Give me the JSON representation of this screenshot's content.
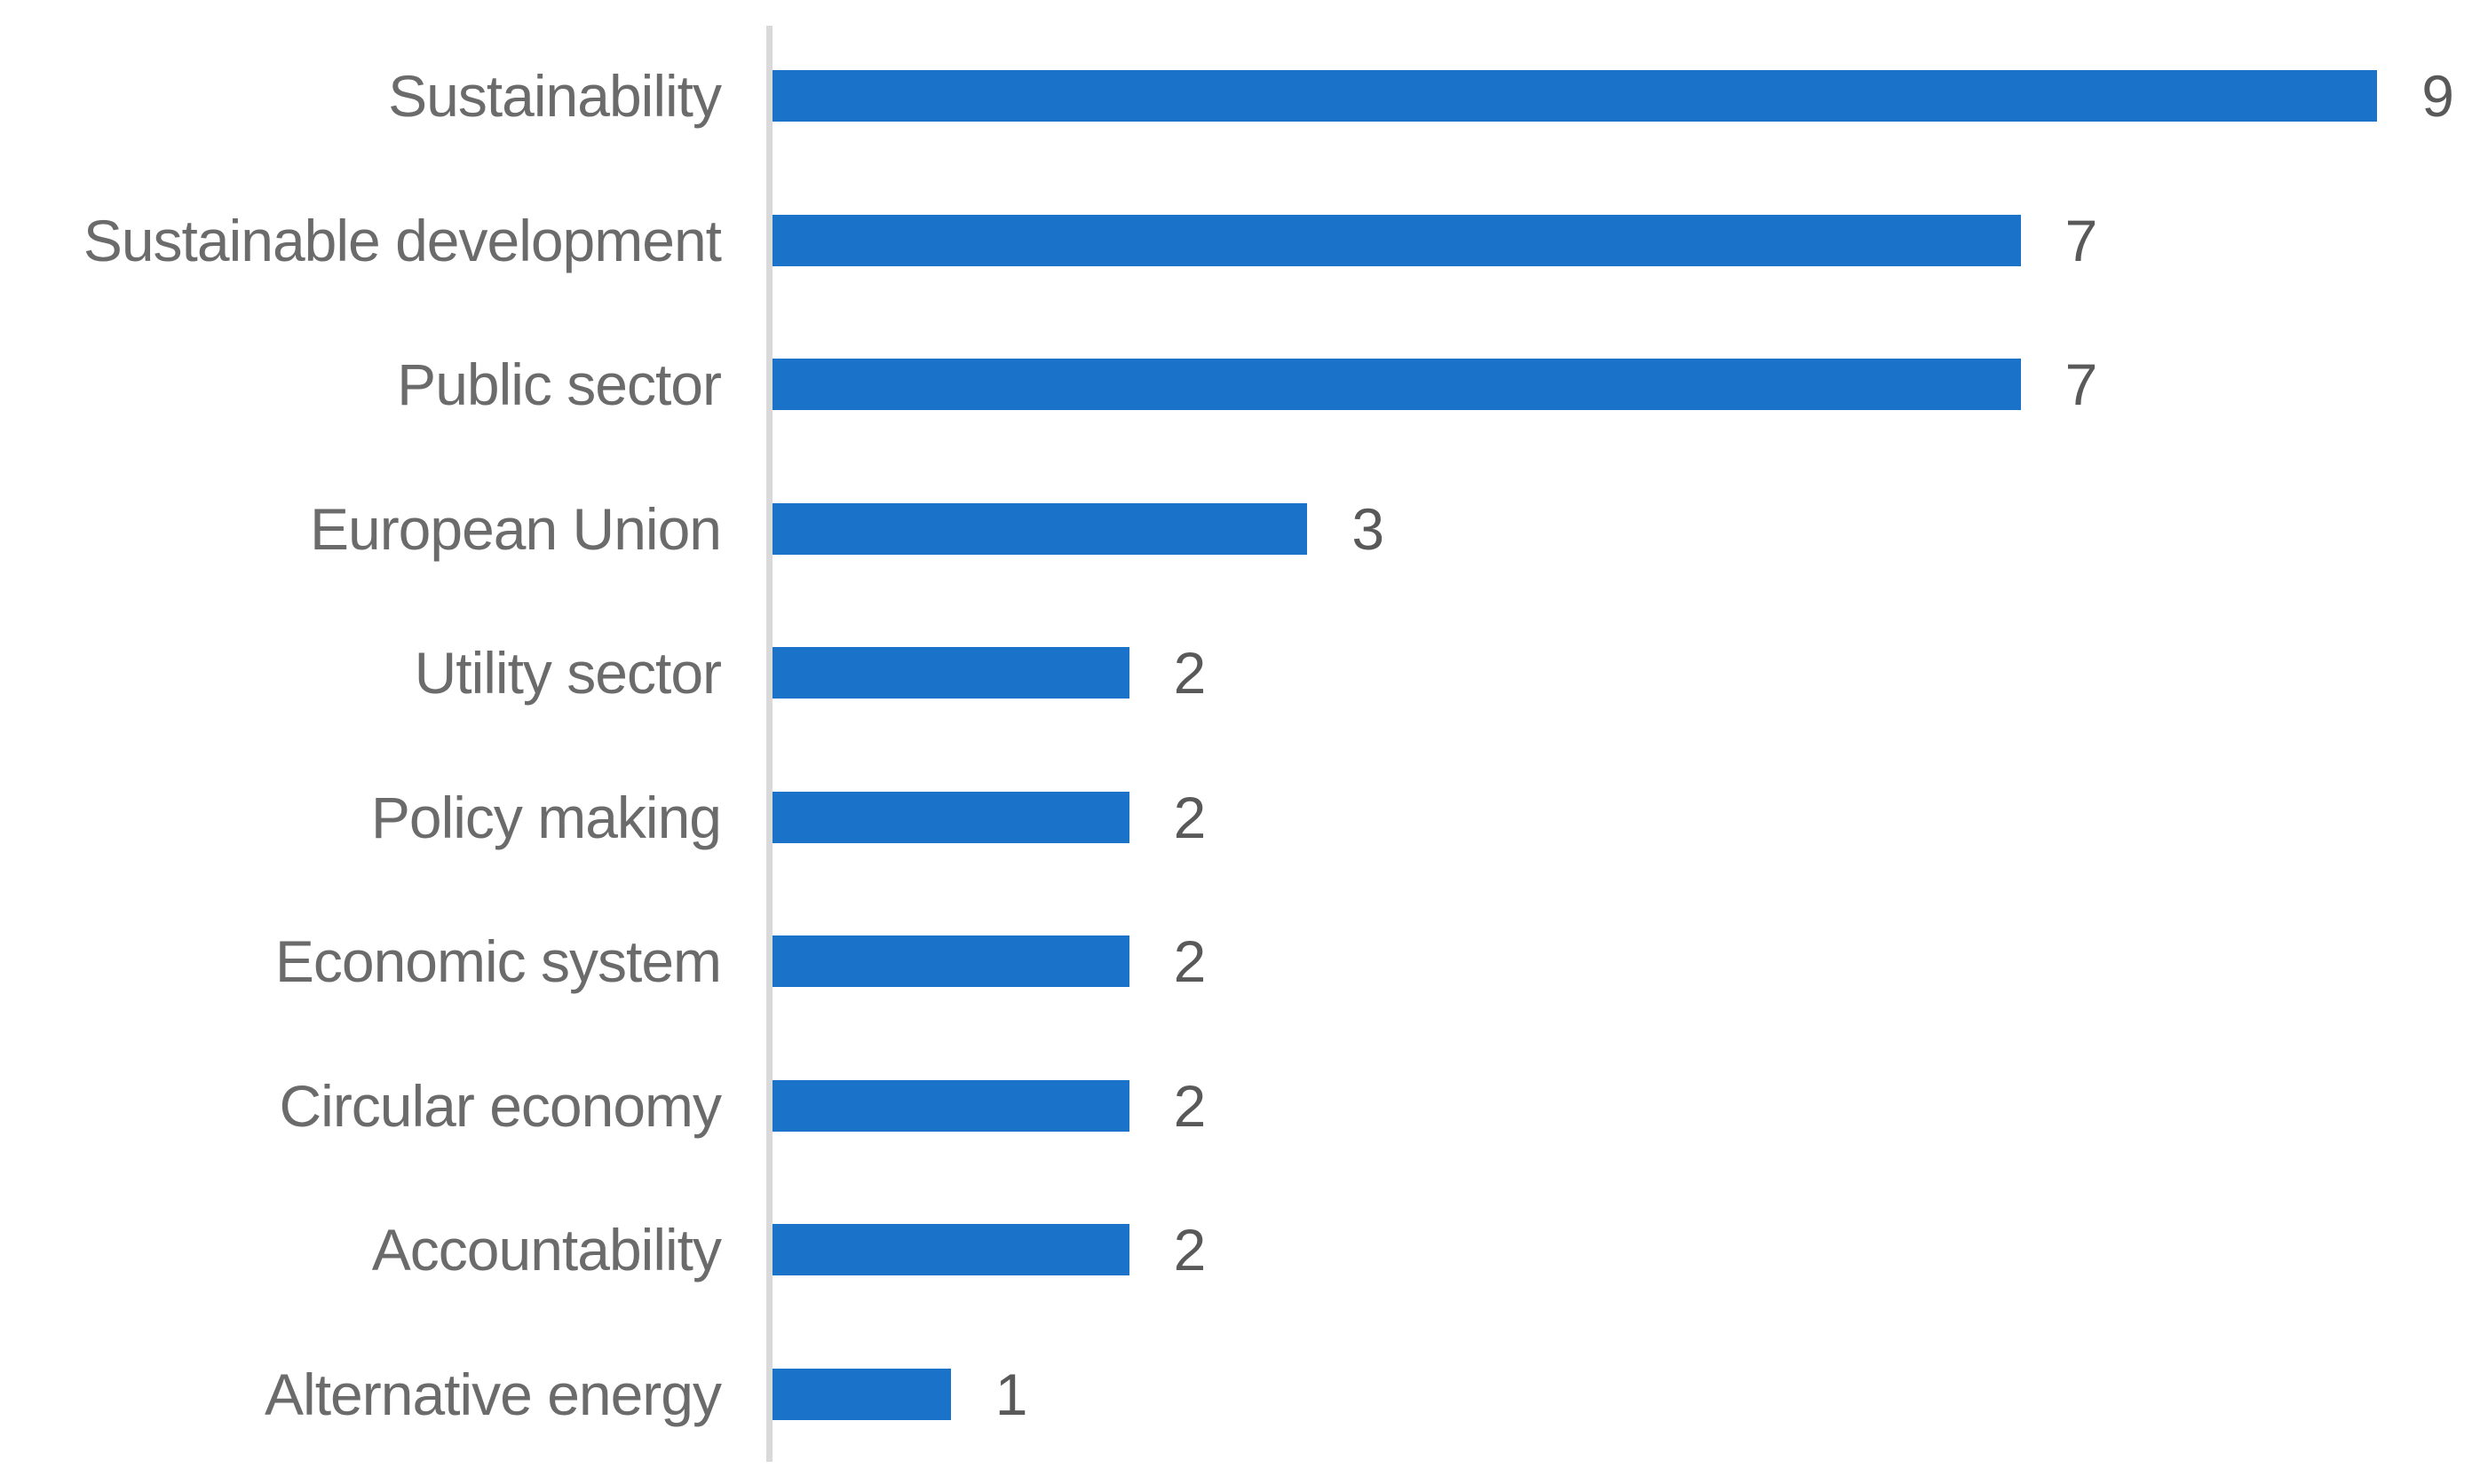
{
  "chart_data": {
    "type": "bar",
    "orientation": "horizontal",
    "title": "",
    "xlabel": "",
    "ylabel": "",
    "categories": [
      "Sustainability",
      "Sustainable development",
      "Public sector",
      "European Union",
      "Utility sector",
      "Policy making",
      "Economic system",
      "Circular economy",
      "Accountability",
      "Alternative energy"
    ],
    "values": [
      9,
      7,
      7,
      3,
      2,
      2,
      2,
      2,
      2,
      1
    ],
    "data_labels": [
      "9",
      "7",
      "7",
      "3",
      "2",
      "2",
      "2",
      "2",
      "2",
      "1"
    ],
    "xlim": [
      0,
      9.6
    ],
    "grid": false,
    "legend": "none",
    "axis_ticks": "none",
    "bar_color": "#1A73C8",
    "axis_line_color": "#D9D9D9",
    "category_label_color": "#6B6B6B",
    "value_label_color": "#595959",
    "background_color": "#FFFFFF"
  }
}
